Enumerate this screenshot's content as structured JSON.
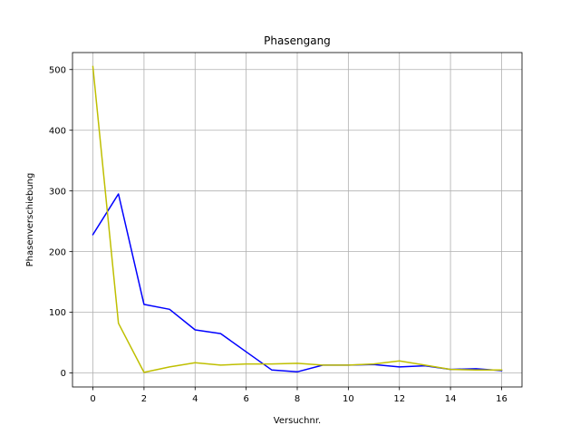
{
  "chart_data": {
    "type": "line",
    "title": "Phasengang",
    "xlabel": "Versuchnr.",
    "ylabel": "Phasenverschiebung",
    "xlim": [
      -0.8,
      16.8
    ],
    "ylim": [
      -23,
      528
    ],
    "x_ticks": [
      0,
      2,
      4,
      6,
      8,
      10,
      12,
      14,
      16
    ],
    "y_ticks": [
      0,
      100,
      200,
      300,
      400,
      500
    ],
    "grid": true,
    "legend": "none",
    "x": [
      0,
      1,
      2,
      3,
      4,
      5,
      6,
      7,
      8,
      9,
      10,
      11,
      12,
      13,
      14,
      15,
      16
    ],
    "series": [
      {
        "color": "#0000ff",
        "values": [
          228,
          295,
          113,
          105,
          71,
          65,
          35,
          5,
          2,
          13,
          13,
          14,
          10,
          12,
          6,
          7,
          4
        ]
      },
      {
        "color": "#bfbf00",
        "values": [
          505,
          82,
          1,
          10,
          17,
          13,
          15,
          15,
          16,
          13,
          13,
          15,
          20,
          13,
          6,
          5,
          5
        ]
      }
    ]
  }
}
